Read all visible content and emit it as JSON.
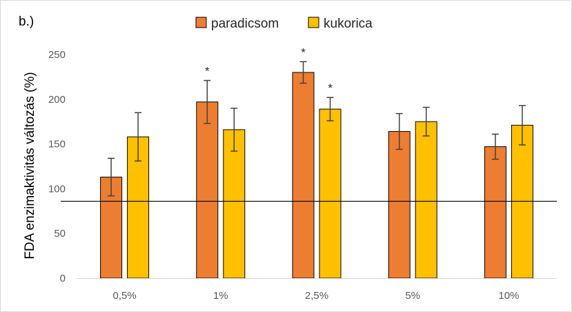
{
  "panel_label": "b.)",
  "colors": {
    "paradicsom": "#ED7D31",
    "kukorica": "#FFC000",
    "axis_text": "#595959",
    "error": "#404040"
  },
  "chart_data": {
    "type": "bar",
    "categories": [
      "0,5%",
      "1%",
      "2,5%",
      "5%",
      "10%"
    ],
    "series": [
      {
        "name": "paradicsom",
        "values": [
          113,
          197,
          230,
          164,
          147
        ],
        "err": [
          21,
          24,
          12,
          20,
          14
        ],
        "sig": [
          false,
          true,
          true,
          false,
          false
        ]
      },
      {
        "name": "kukorica",
        "values": [
          158,
          166,
          189,
          175,
          171
        ],
        "err": [
          27,
          24,
          13,
          16,
          22
        ],
        "sig": [
          false,
          false,
          true,
          false,
          false
        ]
      }
    ],
    "ylabel": "FDA enzimaktivitás változás (%)",
    "ylim": [
      0,
      250
    ],
    "yticks": [
      0,
      50,
      100,
      150,
      200,
      250
    ],
    "reference_line": 86,
    "significance_marker": "*",
    "legend_position": "top-center",
    "grid": false
  }
}
